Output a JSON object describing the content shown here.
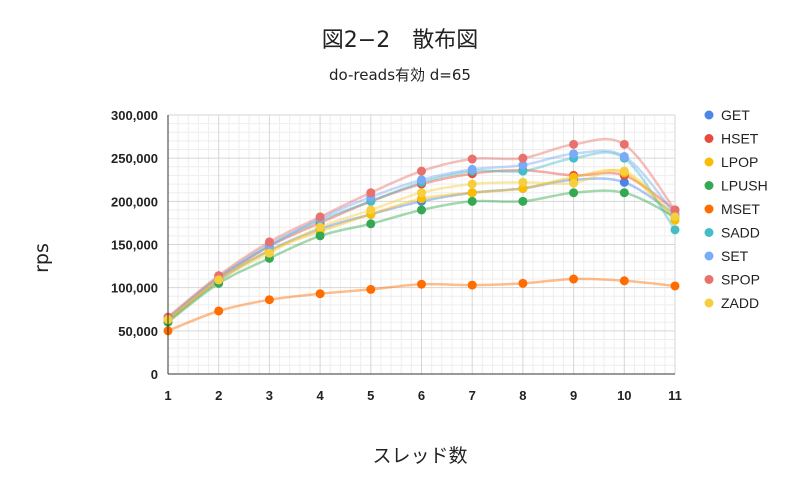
{
  "chart_data": {
    "type": "scatter",
    "title": "図2−2　散布図",
    "subtitle": "do-reads有効 d=65",
    "xlabel": "スレッド数",
    "ylabel": "rps",
    "x": [
      1,
      2,
      3,
      4,
      5,
      6,
      7,
      8,
      9,
      10,
      11
    ],
    "x_ticks": [
      "1",
      "2",
      "3",
      "4",
      "5",
      "6",
      "7",
      "8",
      "9",
      "10",
      "11"
    ],
    "ylim": [
      0,
      300000
    ],
    "y_ticks": [
      "0",
      "50,000",
      "100,000",
      "150,000",
      "200,000",
      "250,000",
      "300,000"
    ],
    "grid": true,
    "trendline": "smooth",
    "legend_position": "right",
    "series": [
      {
        "name": "GET",
        "color": "#4a86e8",
        "values": [
          62000,
          108000,
          143000,
          168000,
          185000,
          200000,
          210000,
          215000,
          225000,
          222000,
          185000
        ]
      },
      {
        "name": "HSET",
        "color": "#e84b3c",
        "values": [
          63000,
          110000,
          148000,
          175000,
          200000,
          220000,
          232000,
          236000,
          230000,
          230000,
          190000
        ]
      },
      {
        "name": "LPOP",
        "color": "#fbbc04",
        "values": [
          61000,
          109000,
          143000,
          165000,
          185000,
          203000,
          210000,
          215000,
          228000,
          233000,
          178000
        ]
      },
      {
        "name": "LPUSH",
        "color": "#34a853",
        "values": [
          60000,
          105000,
          134000,
          160000,
          174000,
          190000,
          200000,
          200000,
          210000,
          210000,
          182000
        ]
      },
      {
        "name": "MSET",
        "color": "#ff6d01",
        "values": [
          50000,
          73000,
          86000,
          93000,
          98000,
          104000,
          103000,
          105000,
          110000,
          108000,
          102000
        ]
      },
      {
        "name": "SADD",
        "color": "#46bdc6",
        "values": [
          64000,
          112000,
          150000,
          178000,
          200000,
          222000,
          235000,
          235000,
          250000,
          250000,
          167000
        ]
      },
      {
        "name": "SET",
        "color": "#7baaf7",
        "values": [
          65000,
          112000,
          148000,
          180000,
          205000,
          225000,
          237000,
          242000,
          255000,
          252000,
          185000
        ]
      },
      {
        "name": "SPOP",
        "color": "#e8716b",
        "values": [
          66000,
          114000,
          153000,
          182000,
          210000,
          235000,
          249000,
          250000,
          266000,
          266000,
          190000
        ]
      },
      {
        "name": "ZADD",
        "color": "#f6cf3f",
        "values": [
          63000,
          109000,
          140000,
          170000,
          190000,
          210000,
          220000,
          222000,
          221000,
          235000,
          182000
        ]
      }
    ]
  }
}
